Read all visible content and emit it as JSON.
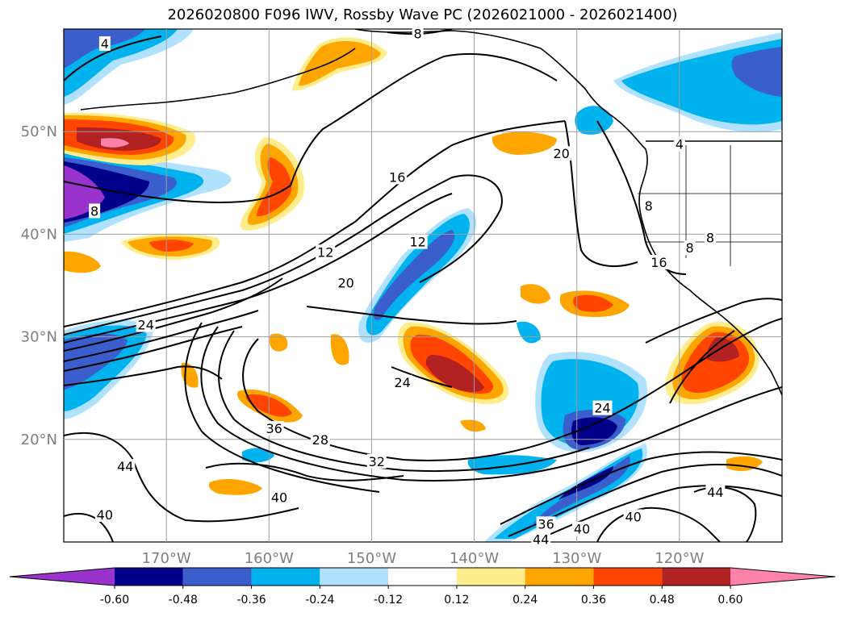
{
  "title": "2026020800 F096 IWV, Rossby Wave PC (2026021000 - 2026021400)",
  "map": {
    "lat_range": [
      10,
      60
    ],
    "lon_range": [
      -180,
      -110
    ],
    "lat_ticks": [
      {
        "value": 20,
        "label": "20°N"
      },
      {
        "value": 30,
        "label": "30°N"
      },
      {
        "value": 40,
        "label": "40°N"
      },
      {
        "value": 50,
        "label": "50°N"
      }
    ],
    "lon_ticks": [
      {
        "value": -170,
        "label": "170°W"
      },
      {
        "value": -160,
        "label": "160°W"
      },
      {
        "value": -150,
        "label": "150°W"
      },
      {
        "value": -140,
        "label": "140°W"
      },
      {
        "value": -130,
        "label": "130°W"
      },
      {
        "value": -120,
        "label": "120°W"
      }
    ],
    "grid": true,
    "contour_labels": [
      {
        "text": "4",
        "lon": -176,
        "lat": 58.5
      },
      {
        "text": "8",
        "lon": -145.5,
        "lat": 59.5
      },
      {
        "text": "8",
        "lon": -177,
        "lat": 42.2
      },
      {
        "text": "4",
        "lon": -120,
        "lat": 48.7
      },
      {
        "text": "8",
        "lon": -123,
        "lat": 42.7
      },
      {
        "text": "8",
        "lon": -117,
        "lat": 39.6
      },
      {
        "text": "8",
        "lon": -119,
        "lat": 38.6
      },
      {
        "text": "16",
        "lon": -147.5,
        "lat": 45.5
      },
      {
        "text": "20",
        "lon": -131.5,
        "lat": 47.8
      },
      {
        "text": "12",
        "lon": -145.5,
        "lat": 39.2
      },
      {
        "text": "12",
        "lon": -154.5,
        "lat": 38.2
      },
      {
        "text": "20",
        "lon": -152.5,
        "lat": 35.2
      },
      {
        "text": "16",
        "lon": -122,
        "lat": 37.2
      },
      {
        "text": "24",
        "lon": -172,
        "lat": 31.1
      },
      {
        "text": "24",
        "lon": -147,
        "lat": 25.5
      },
      {
        "text": "24",
        "lon": -127.5,
        "lat": 23.0
      },
      {
        "text": "36",
        "lon": -159.5,
        "lat": 21.0
      },
      {
        "text": "28",
        "lon": -155,
        "lat": 19.9
      },
      {
        "text": "32",
        "lon": -149.5,
        "lat": 17.8
      },
      {
        "text": "44",
        "lon": -174,
        "lat": 17.3
      },
      {
        "text": "40",
        "lon": -159,
        "lat": 14.3
      },
      {
        "text": "44",
        "lon": -116.5,
        "lat": 14.8
      },
      {
        "text": "40",
        "lon": -176,
        "lat": 12.6
      },
      {
        "text": "36",
        "lon": -133,
        "lat": 11.7
      },
      {
        "text": "40",
        "lon": -129.5,
        "lat": 11.2
      },
      {
        "text": "40",
        "lon": -124.5,
        "lat": 12.4
      },
      {
        "text": "44",
        "lon": -133.5,
        "lat": 10.2
      }
    ]
  },
  "colorbar": {
    "levels": [
      "-0.60",
      "-0.48",
      "-0.36",
      "-0.24",
      "-0.12",
      "0.12",
      "0.24",
      "0.36",
      "0.48",
      "0.60"
    ],
    "colors": [
      "#9a32cd",
      "#00008b",
      "#3a5fcd",
      "#00b2ee",
      "#b0e2ff",
      "#ffffff",
      "#ffec8b",
      "#ffa500",
      "#ff4500",
      "#b22222",
      "#ff82ab"
    ]
  }
}
